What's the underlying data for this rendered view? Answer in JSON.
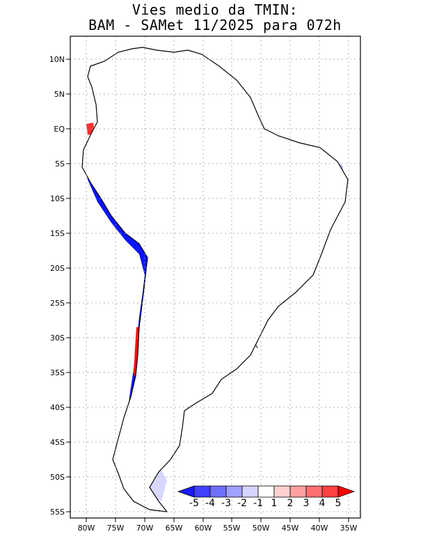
{
  "title": {
    "line1": "Vies medio da TMIN:",
    "line2": "BAM - SAMet 11/2025  para 072h"
  },
  "axes": {
    "lat_labels": [
      "10N",
      "5N",
      "EQ",
      "5S",
      "10S",
      "15S",
      "20S",
      "25S",
      "30S",
      "35S",
      "40S",
      "45S",
      "50S",
      "55S"
    ],
    "lon_labels": [
      "80W",
      "75W",
      "70W",
      "65W",
      "60W",
      "55W",
      "50W",
      "45W",
      "40W",
      "35W"
    ]
  },
  "colorbar": {
    "labels": [
      "-5",
      "-4",
      "-3",
      "-2",
      "-1",
      "1",
      "2",
      "3",
      "4",
      "5"
    ],
    "colors": [
      "#1a1aff",
      "#4040ff",
      "#7070ff",
      "#a0a0ff",
      "#d5d5ff",
      "#ffffff",
      "#ffd0d0",
      "#ffa0a0",
      "#ff7070",
      "#ff4040",
      "#ff0000"
    ]
  },
  "palette": {
    "strong_blue": "#0a14ff",
    "blue": "#4a4aff",
    "light_blue": "#a9a9ff",
    "pale_blue": "#d8d8ff",
    "pale_red": "#ffd6d6",
    "light_red": "#ffb0b0",
    "red": "#ff6e6e",
    "strong_red": "#ff1010",
    "land_white": "#ffffff",
    "border": "#000000",
    "grid": "#9a9a9a"
  }
}
